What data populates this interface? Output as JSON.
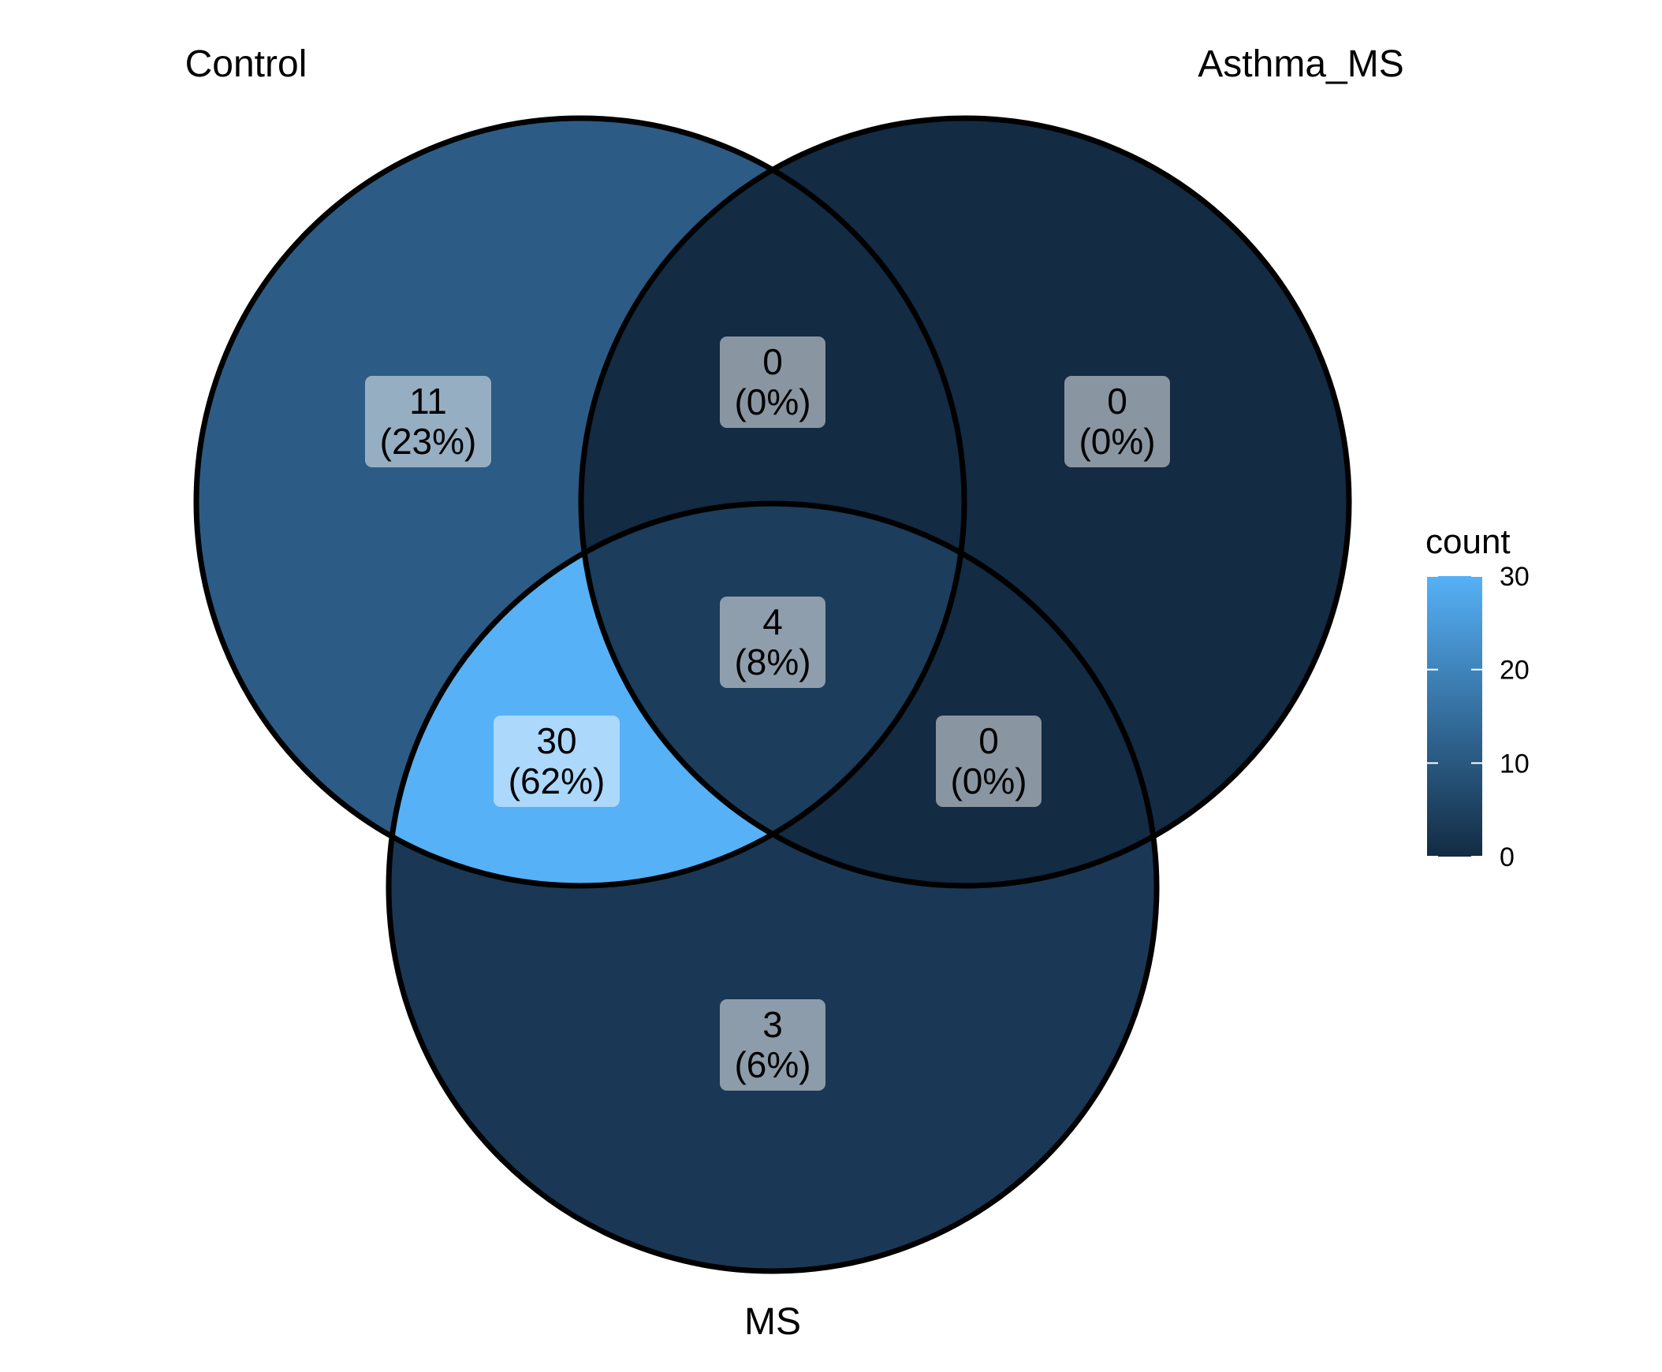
{
  "chart_data": {
    "type": "venn",
    "sets": [
      "Control",
      "Asthma_MS",
      "MS"
    ],
    "regions": [
      {
        "sets": [
          "Control"
        ],
        "count": 11,
        "percent_label": "(23%)"
      },
      {
        "sets": [
          "Asthma_MS"
        ],
        "count": 0,
        "percent_label": "(0%)"
      },
      {
        "sets": [
          "MS"
        ],
        "count": 3,
        "percent_label": "(6%)"
      },
      {
        "sets": [
          "Control",
          "Asthma_MS"
        ],
        "count": 0,
        "percent_label": "(0%)"
      },
      {
        "sets": [
          "Control",
          "MS"
        ],
        "count": 30,
        "percent_label": "(62%)"
      },
      {
        "sets": [
          "Asthma_MS",
          "MS"
        ],
        "count": 0,
        "percent_label": "(0%)"
      },
      {
        "sets": [
          "Control",
          "Asthma_MS",
          "MS"
        ],
        "count": 4,
        "percent_label": "(8%)"
      }
    ],
    "legend": {
      "title": "count",
      "ticks": [
        0,
        10,
        20,
        30
      ],
      "range": [
        0,
        30
      ],
      "low_color": "#132B43",
      "high_color": "#56B1F7",
      "placement": "right"
    }
  }
}
